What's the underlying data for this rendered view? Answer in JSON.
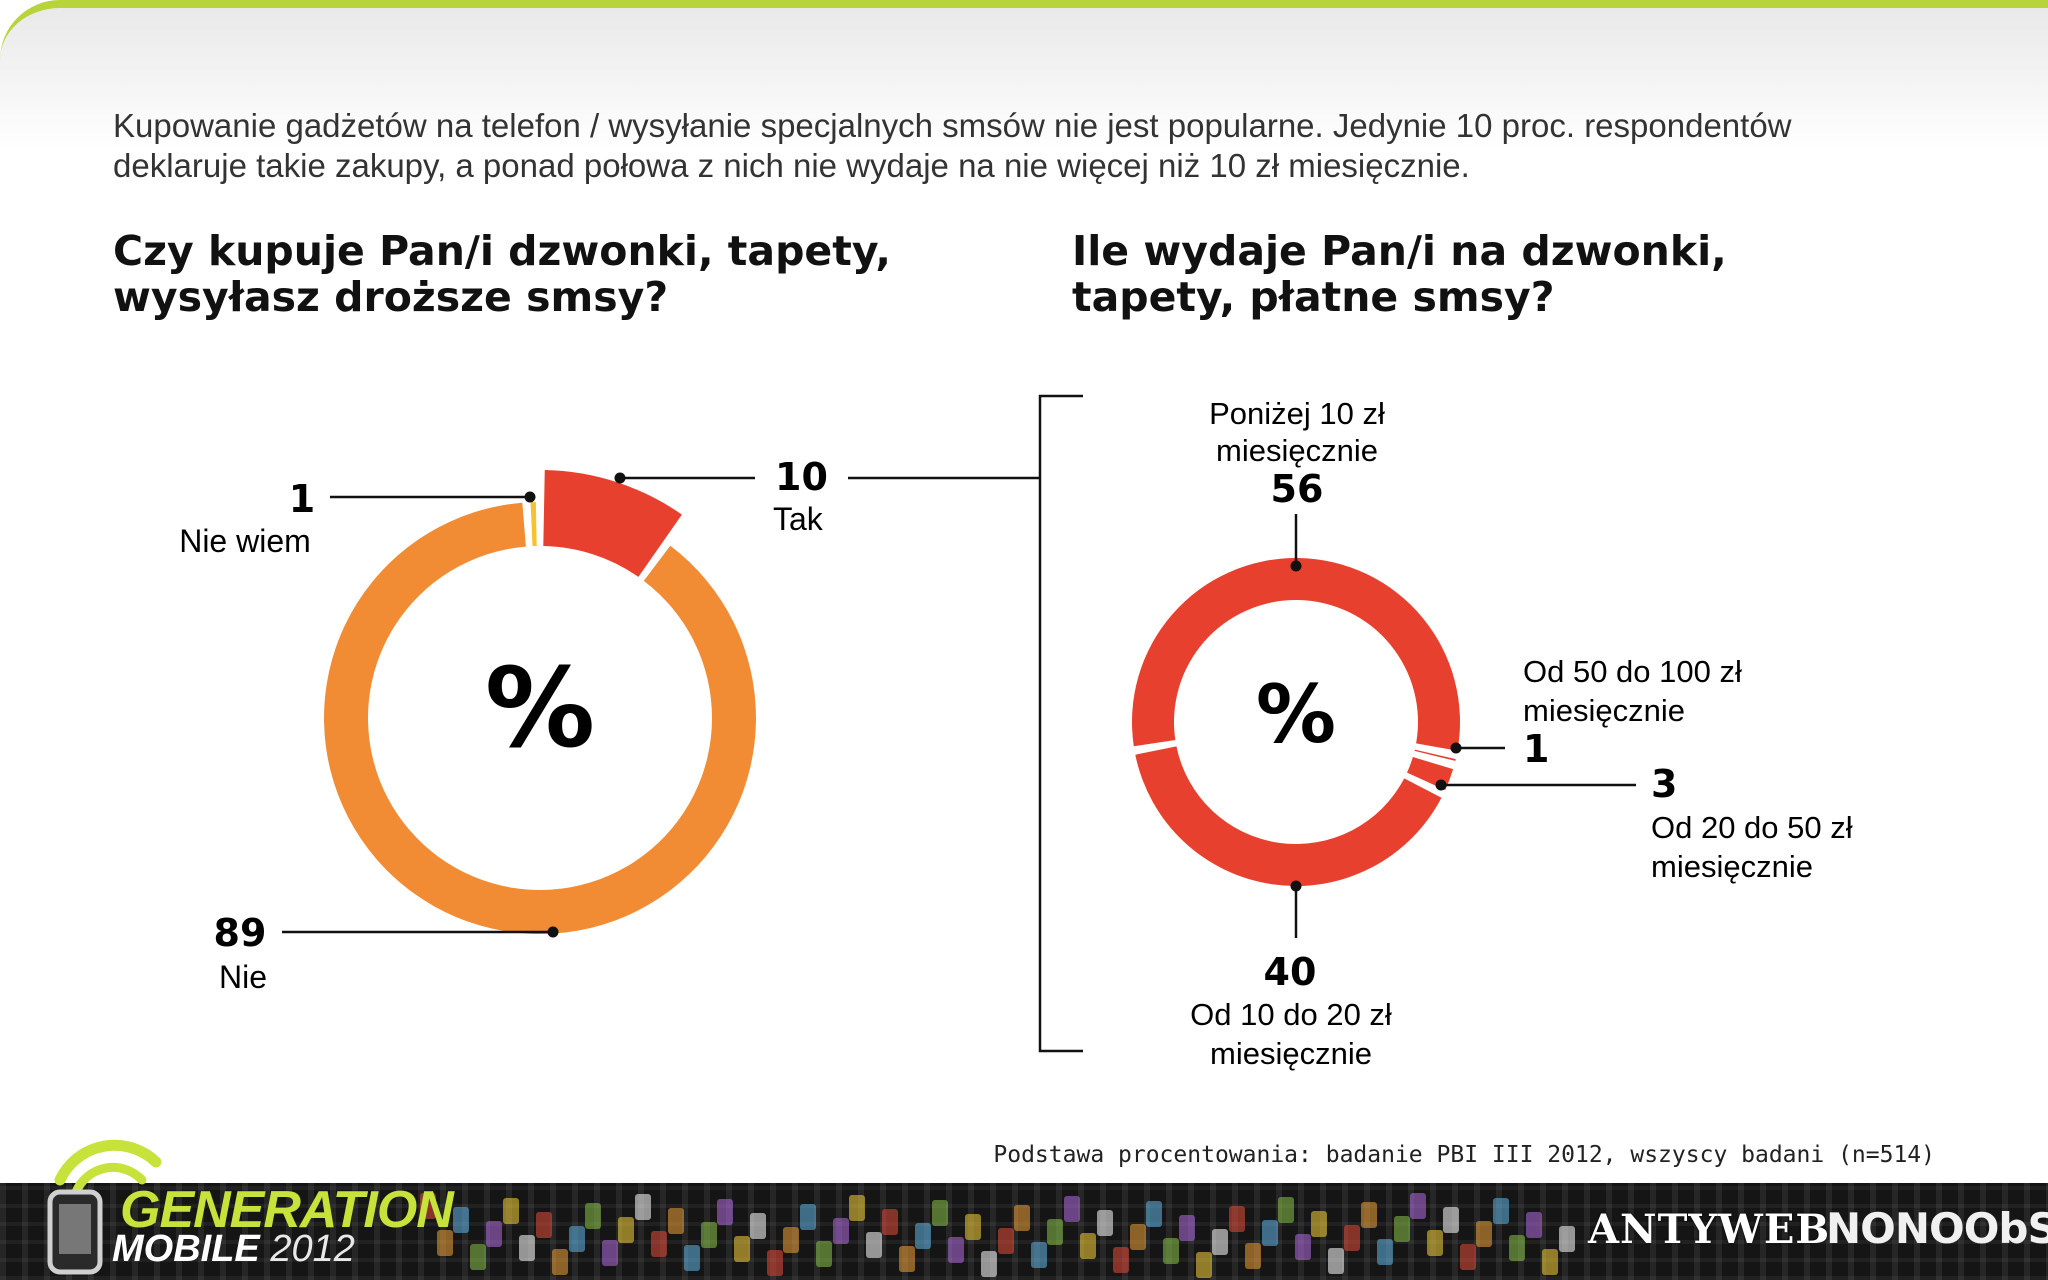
{
  "intro": {
    "line1": "Kupowanie gadżetów na telefon / wysyłanie specjalnych smsów nie jest popularne. Jedynie 10 proc. respondentów",
    "line2": "deklaruje takie zakupy, a ponad połowa z nich nie wydaje na nie więcej niż 10 zł miesięcznie."
  },
  "chart_data": [
    {
      "type": "pie",
      "title_lines": [
        "Czy kupuje Pan/i dzwonki, tapety,",
        "wysyłasz droższe smsy?"
      ],
      "center_label": "%",
      "slices": [
        {
          "label": "Tak",
          "value": 10,
          "color": "#e8402e"
        },
        {
          "label": "Nie",
          "value": 89,
          "color": "#f28c34"
        },
        {
          "label": "Nie wiem",
          "value": 1,
          "color": "#f7c22f"
        }
      ]
    },
    {
      "type": "pie",
      "title_lines": [
        "Ile wydaje Pan/i na dzwonki,",
        "tapety, płatne smsy?"
      ],
      "center_label": "%",
      "slices": [
        {
          "label_lines": [
            "Poniżej 10 zł",
            "miesięcznie"
          ],
          "value": 56,
          "color": "#e8402e"
        },
        {
          "label_lines": [
            "Od 50 do 100 zł",
            "miesięcznie"
          ],
          "value": 1,
          "color": "#e8402e"
        },
        {
          "label_lines": [
            "Od 20 do 50 zł",
            "miesięcznie"
          ],
          "value": 3,
          "color": "#e8402e"
        },
        {
          "label_lines": [
            "Od 10 do 20 zł",
            "miesięcznie"
          ],
          "value": 40,
          "color": "#e8402e"
        }
      ]
    }
  ],
  "footnote": "Podstawa procentowania: badanie PBI III 2012, wszyscy badani (n=514)",
  "branding": {
    "gm_line1": "GENERATION",
    "gm_line2": "MOBILE",
    "gm_year": "2012",
    "antyweb": "ANTYWEB",
    "nonoobs": "NONOObS"
  },
  "colors": {
    "accent_green": "#b7d43a",
    "red": "#e8402e",
    "orange": "#f28c34",
    "yellow": "#f7c22f"
  }
}
